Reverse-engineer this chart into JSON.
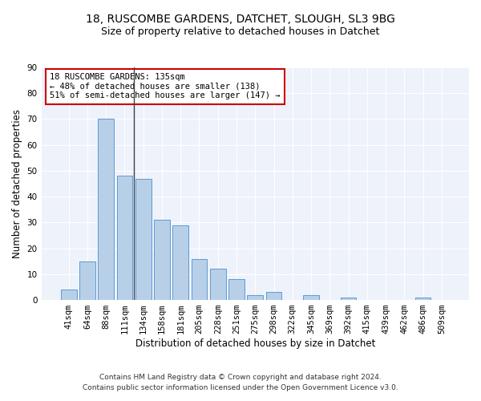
{
  "title_line1": "18, RUSCOMBE GARDENS, DATCHET, SLOUGH, SL3 9BG",
  "title_line2": "Size of property relative to detached houses in Datchet",
  "xlabel": "Distribution of detached houses by size in Datchet",
  "ylabel": "Number of detached properties",
  "categories": [
    "41sqm",
    "64sqm",
    "88sqm",
    "111sqm",
    "134sqm",
    "158sqm",
    "181sqm",
    "205sqm",
    "228sqm",
    "251sqm",
    "275sqm",
    "298sqm",
    "322sqm",
    "345sqm",
    "369sqm",
    "392sqm",
    "415sqm",
    "439sqm",
    "462sqm",
    "486sqm",
    "509sqm"
  ],
  "values": [
    4,
    15,
    70,
    48,
    47,
    31,
    29,
    16,
    12,
    8,
    2,
    3,
    0,
    2,
    0,
    1,
    0,
    0,
    0,
    1,
    0
  ],
  "bar_color": "#b8cfe8",
  "bar_edge_color": "#5b9bd5",
  "vline_color": "#404040",
  "annotation_text": "18 RUSCOMBE GARDENS: 135sqm\n← 48% of detached houses are smaller (138)\n51% of semi-detached houses are larger (147) →",
  "annotation_box_color": "#ffffff",
  "annotation_box_edge_color": "#cc0000",
  "ylim": [
    0,
    90
  ],
  "yticks": [
    0,
    10,
    20,
    30,
    40,
    50,
    60,
    70,
    80,
    90
  ],
  "background_color": "#eef2fb",
  "footer_line1": "Contains HM Land Registry data © Crown copyright and database right 2024.",
  "footer_line2": "Contains public sector information licensed under the Open Government Licence v3.0.",
  "title_fontsize": 10,
  "subtitle_fontsize": 9,
  "axis_label_fontsize": 8.5,
  "tick_fontsize": 7.5,
  "annotation_fontsize": 7.5,
  "footer_fontsize": 6.5
}
